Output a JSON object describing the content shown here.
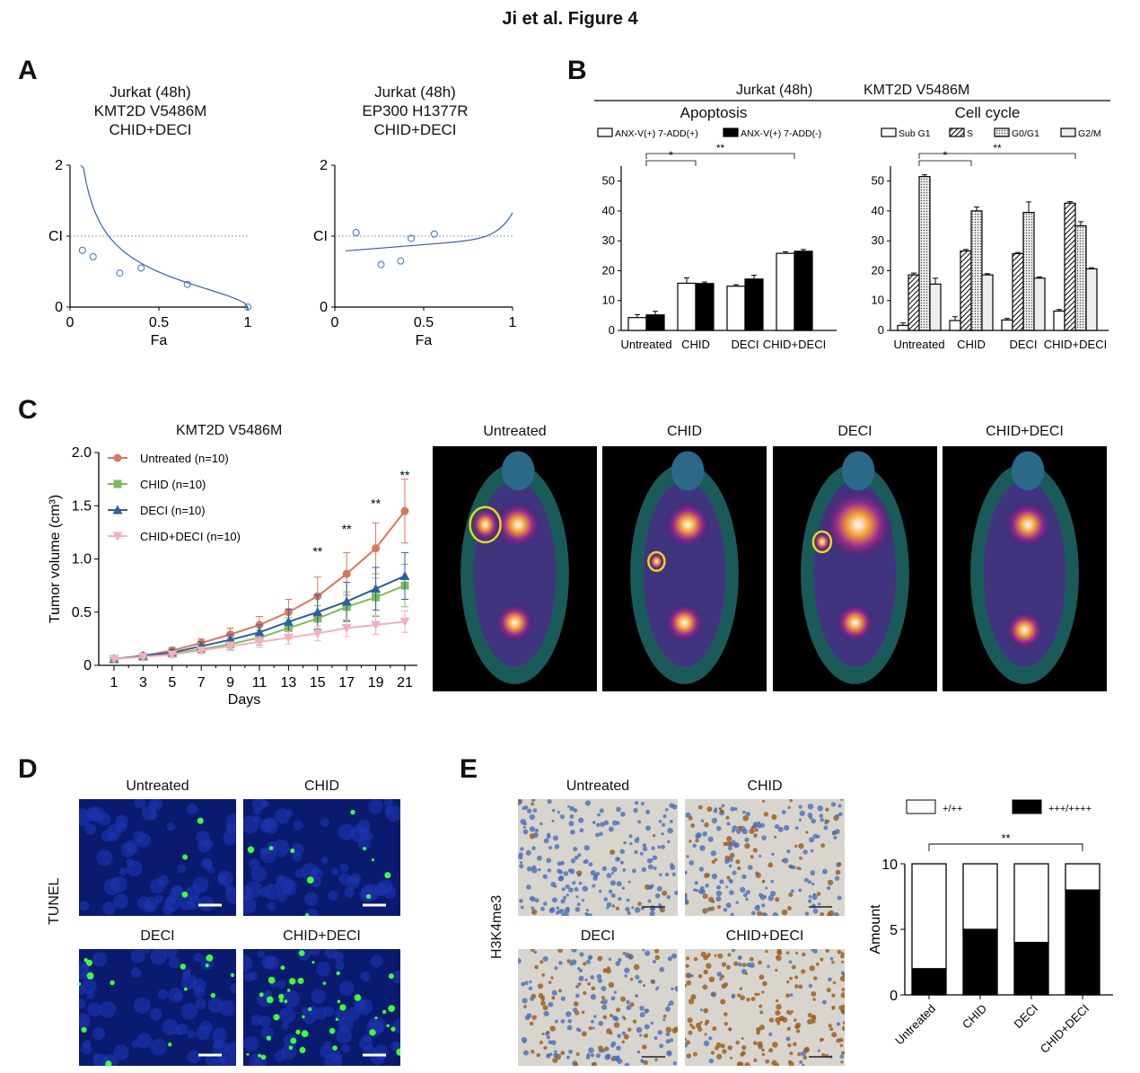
{
  "figure_title": "Ji et al. Figure 4",
  "panels": {
    "A": "A",
    "B": "B",
    "C": "C",
    "D": "D",
    "E": "E"
  },
  "panel_a": {
    "left_title": [
      "Jurkat (48h)",
      "KMT2D V5486M",
      "CHID+DECI"
    ],
    "right_title": [
      "Jurkat (48h)",
      "EP300 H1377R",
      "CHID+DECI"
    ],
    "y_ticks": [
      "2",
      "CI",
      "0"
    ],
    "x_ticks": [
      "0",
      "0.5",
      "1"
    ],
    "xlabel": "Fa"
  },
  "panel_b": {
    "header": "Jurkat (48h)",
    "header_mut": "KMT2D V5486M",
    "apoptosis_title": "Apoptosis",
    "cycle_title": "Cell cycle",
    "sig_star": "*",
    "sig_double": "**"
  },
  "panel_c": {
    "chart_title": "KMT2D V5486M",
    "sig_marks": [
      "**",
      "**",
      "**",
      "**"
    ],
    "image_labels": [
      "Untreated",
      "CHID",
      "DECI",
      "CHID+DECI"
    ]
  },
  "panel_d": {
    "ylabel": "TUNEL",
    "image_labels": [
      "Untreated",
      "CHID",
      "DECI",
      "CHID+DECI"
    ]
  },
  "panel_e": {
    "ylabel": "H3K4me3",
    "image_labels": [
      "Untreated",
      "CHID",
      "DECI",
      "CHID+DECI"
    ],
    "sig": "**"
  },
  "chart_data": [
    {
      "id": "A-left",
      "type": "scatter",
      "xlabel": "Fa",
      "ylabel": "CI",
      "xlim": [
        0,
        1
      ],
      "ylim": [
        0,
        2
      ],
      "x": [
        0.07,
        0.13,
        0.28,
        0.4,
        0.66,
        1.0
      ],
      "y": [
        0.8,
        0.71,
        0.48,
        0.55,
        0.32,
        0.0
      ]
    },
    {
      "id": "A-right",
      "type": "scatter",
      "xlabel": "Fa",
      "ylabel": "CI",
      "xlim": [
        0,
        1
      ],
      "ylim": [
        0,
        2
      ],
      "x": [
        0.12,
        0.26,
        0.37,
        0.43,
        0.56
      ],
      "y": [
        1.05,
        0.6,
        0.65,
        0.97,
        1.03
      ]
    },
    {
      "id": "B-apoptosis",
      "type": "bar",
      "categories": [
        "Untreated",
        "CHID",
        "DECI",
        "CHID+DECI"
      ],
      "series": [
        {
          "name": "ANX-V(+) 7-ADD(+)",
          "values": [
            4.3,
            15.8,
            14.8,
            25.8
          ],
          "errors": [
            1.0,
            1.8,
            0.5,
            0.5
          ],
          "color": "#ffffff"
        },
        {
          "name": "ANX-V(+) 7-ADD(-)",
          "values": [
            5.2,
            15.7,
            17.2,
            26.5
          ],
          "errors": [
            1.2,
            0.5,
            1.3,
            0.6
          ],
          "color": "#000000"
        }
      ],
      "ylim": [
        0,
        55
      ],
      "yticks": [
        "0",
        "10",
        "20",
        "30",
        "40",
        "50"
      ]
    },
    {
      "id": "B-cellcycle",
      "type": "bar",
      "categories": [
        "Untreated",
        "CHID",
        "DECI",
        "CHID+DECI"
      ],
      "series": [
        {
          "name": "Sub G1",
          "values": [
            1.7,
            3.3,
            3.5,
            6.5
          ],
          "errors": [
            0.8,
            1.3,
            0.5,
            0.5
          ]
        },
        {
          "name": "S",
          "values": [
            18.6,
            26.6,
            25.7,
            42.6
          ],
          "errors": [
            0.6,
            0.5,
            0.4,
            0.5
          ]
        },
        {
          "name": "G0/G1",
          "values": [
            51.5,
            40.0,
            39.5,
            35.0
          ],
          "errors": [
            0.6,
            1.3,
            3.5,
            1.4
          ]
        },
        {
          "name": "G2/M",
          "values": [
            15.5,
            18.6,
            17.5,
            20.6
          ],
          "errors": [
            2.0,
            0.4,
            0.4,
            0.4
          ]
        }
      ],
      "ylim": [
        0,
        55
      ],
      "yticks": [
        "0",
        "10",
        "20",
        "30",
        "40",
        "50"
      ]
    },
    {
      "id": "C-growth",
      "type": "line",
      "title": "KMT2D V5486M",
      "xlabel": "Days",
      "ylabel": "Tumor volume (cm³)",
      "x": [
        1,
        3,
        5,
        7,
        9,
        11,
        13,
        15,
        17,
        19,
        21
      ],
      "ylim": [
        0,
        2.0
      ],
      "yticks": [
        "0",
        "0.5",
        "1.0",
        "1.5",
        "2.0"
      ],
      "series": [
        {
          "name": "Untreated (n=10)",
          "color": "#d9775d",
          "marker": "circle",
          "values": [
            0.06,
            0.09,
            0.14,
            0.21,
            0.29,
            0.38,
            0.5,
            0.65,
            0.86,
            1.1,
            1.45
          ],
          "errors": [
            0.02,
            0.02,
            0.03,
            0.04,
            0.06,
            0.08,
            0.12,
            0.18,
            0.2,
            0.24,
            0.3
          ]
        },
        {
          "name": "CHID (n=10)",
          "color": "#7dbb5b",
          "marker": "square",
          "values": [
            0.06,
            0.08,
            0.11,
            0.15,
            0.2,
            0.26,
            0.35,
            0.44,
            0.55,
            0.64,
            0.75
          ],
          "errors": [
            0.02,
            0.02,
            0.03,
            0.03,
            0.05,
            0.07,
            0.1,
            0.12,
            0.14,
            0.18,
            0.2
          ]
        },
        {
          "name": "DECI (n=10)",
          "color": "#2e5f9e",
          "marker": "triangle",
          "values": [
            0.06,
            0.09,
            0.12,
            0.18,
            0.24,
            0.31,
            0.41,
            0.5,
            0.6,
            0.72,
            0.84
          ],
          "errors": [
            0.02,
            0.02,
            0.03,
            0.04,
            0.05,
            0.07,
            0.12,
            0.16,
            0.18,
            0.2,
            0.22
          ]
        },
        {
          "name": "CHID+DECI (n=10)",
          "color": "#f5aebd",
          "marker": "triangle-down",
          "values": [
            0.06,
            0.08,
            0.1,
            0.14,
            0.18,
            0.22,
            0.26,
            0.3,
            0.35,
            0.38,
            0.41
          ],
          "errors": [
            0.02,
            0.02,
            0.02,
            0.03,
            0.04,
            0.05,
            0.06,
            0.07,
            0.08,
            0.09,
            0.1
          ]
        }
      ]
    },
    {
      "id": "E-amount",
      "type": "bar",
      "ylabel": "Amount",
      "categories": [
        "Untreated",
        "CHID",
        "DECI",
        "CHID+DECI"
      ],
      "series": [
        {
          "name": "+++/++++",
          "values": [
            2,
            5,
            4,
            8
          ],
          "color": "#000000"
        },
        {
          "name": "+/++",
          "values": [
            8,
            5,
            6,
            2
          ],
          "color": "#ffffff"
        }
      ],
      "ylim": [
        0,
        10
      ],
      "yticks": [
        "0",
        "5",
        "10"
      ]
    }
  ]
}
